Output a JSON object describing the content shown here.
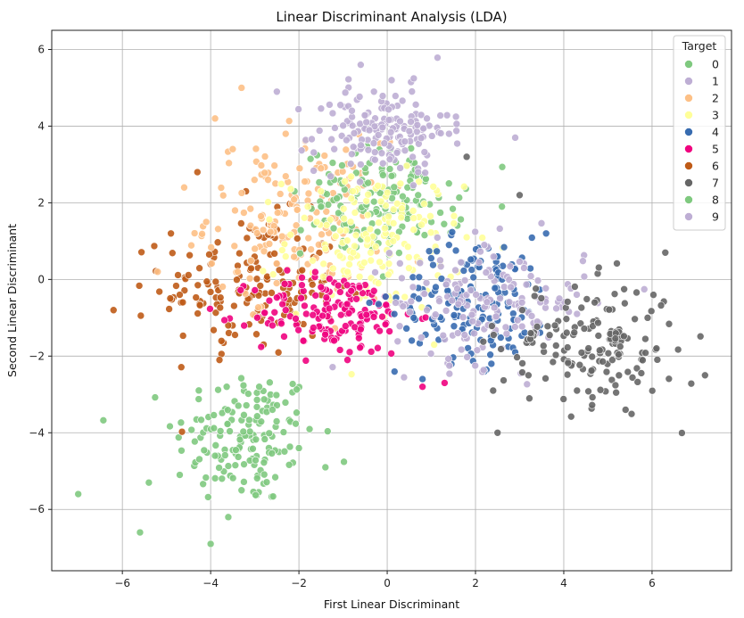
{
  "chart_data": {
    "type": "scatter",
    "title": "Linear Discriminant Analysis (LDA)",
    "xlabel": "First Linear Discriminant",
    "ylabel": "Second Linear Discriminant",
    "xlim": [
      -7.6,
      7.8
    ],
    "ylim": [
      -7.6,
      6.5
    ],
    "xticks": [
      -6,
      -4,
      -2,
      0,
      2,
      4,
      6
    ],
    "yticks": [
      -6,
      -4,
      -2,
      0,
      2,
      4,
      6
    ],
    "xtick_labels": [
      "−6",
      "−4",
      "−2",
      "0",
      "2",
      "4",
      "6"
    ],
    "ytick_labels": [
      "−6",
      "−4",
      "−2",
      "0",
      "2",
      "4",
      "6"
    ],
    "grid": true,
    "legend": {
      "title": "Target",
      "placement": "top-right"
    },
    "series": [
      {
        "name": "0",
        "color": "#7fc97f",
        "center": [
          -0.1,
          2.0
        ],
        "spread": [
          0.9,
          0.7
        ],
        "points": [
          [
            -1.2,
            2.6
          ],
          [
            -0.5,
            2.9
          ],
          [
            0.3,
            1.8
          ],
          [
            -0.8,
            1.4
          ],
          [
            0.7,
            2.2
          ],
          [
            -1.5,
            1.9
          ],
          [
            0.1,
            2.7
          ],
          [
            -0.3,
            1.1
          ],
          [
            1.0,
            1.5
          ],
          [
            -2.1,
            2.3
          ],
          [
            0.5,
            3.1
          ],
          [
            -1.0,
            1.0
          ]
        ]
      },
      {
        "name": "1",
        "color": "#beaed4",
        "center": [
          2.3,
          -0.6
        ],
        "spread": [
          1.1,
          0.8
        ],
        "points": [
          [
            1.2,
            0.5
          ],
          [
            2.8,
            -0.2
          ],
          [
            3.4,
            -1.1
          ],
          [
            1.6,
            -1.4
          ],
          [
            2.2,
            0.9
          ],
          [
            3.9,
            -0.5
          ],
          [
            0.9,
            -0.8
          ],
          [
            2.6,
            -1.8
          ],
          [
            4.3,
            -0.9
          ],
          [
            3.1,
            0.3
          ]
        ]
      },
      {
        "name": "2",
        "color": "#fdc086",
        "center": [
          -2.1,
          1.6
        ],
        "spread": [
          1.0,
          1.0
        ],
        "points": [
          [
            -3.5,
            3.4
          ],
          [
            -2.7,
            2.6
          ],
          [
            -4.1,
            1.5
          ],
          [
            -1.5,
            2.9
          ],
          [
            -3.0,
            0.8
          ],
          [
            -5.2,
            0.2
          ],
          [
            -2.3,
            3.8
          ],
          [
            -1.0,
            1.2
          ],
          [
            -3.9,
            4.2
          ],
          [
            -4.6,
            2.4
          ],
          [
            -1.8,
            0.4
          ],
          [
            -3.3,
            5.0
          ]
        ]
      },
      {
        "name": "3",
        "color": "#ffff99",
        "center": [
          -0.3,
          1.0
        ],
        "spread": [
          1.0,
          0.9
        ],
        "points": [
          [
            -1.4,
            0.8
          ],
          [
            0.6,
            1.6
          ],
          [
            -0.2,
            -0.1
          ],
          [
            1.2,
            0.4
          ],
          [
            -1.8,
            1.9
          ],
          [
            0.3,
            2.5
          ],
          [
            -0.9,
            0.2
          ],
          [
            1.8,
            1.1
          ],
          [
            -2.3,
            0.6
          ],
          [
            0.9,
            -0.3
          ]
        ]
      },
      {
        "name": "4",
        "color": "#386cb0",
        "center": [
          2.0,
          -0.5
        ],
        "spread": [
          0.9,
          0.8
        ],
        "points": [
          [
            1.1,
            -0.2
          ],
          [
            2.5,
            0.6
          ],
          [
            1.7,
            -1.3
          ],
          [
            3.1,
            -0.8
          ],
          [
            0.6,
            -1.0
          ],
          [
            2.2,
            -2.4
          ],
          [
            3.6,
            1.2
          ],
          [
            1.4,
            0.9
          ],
          [
            2.9,
            -1.9
          ],
          [
            0.8,
            -2.6
          ]
        ]
      },
      {
        "name": "5",
        "color": "#f0027f",
        "center": [
          -1.2,
          -0.9
        ],
        "spread": [
          0.9,
          0.55
        ],
        "points": [
          [
            -2.3,
            -0.8
          ],
          [
            -0.6,
            -1.3
          ],
          [
            -1.5,
            -0.2
          ],
          [
            0.1,
            -0.9
          ],
          [
            -1.9,
            -1.6
          ],
          [
            -0.9,
            -2.1
          ],
          [
            0.8,
            -2.8
          ],
          [
            -2.6,
            -1.2
          ],
          [
            -0.3,
            -0.3
          ],
          [
            1.3,
            -2.7
          ]
        ]
      },
      {
        "name": "6",
        "color": "#bf5b17",
        "center": [
          -3.1,
          -0.2
        ],
        "spread": [
          1.0,
          0.9
        ],
        "points": [
          [
            -4.0,
            0.4
          ],
          [
            -2.5,
            1.3
          ],
          [
            -3.6,
            -1.2
          ],
          [
            -4.7,
            -0.4
          ],
          [
            -2.1,
            -0.9
          ],
          [
            -3.2,
            2.3
          ],
          [
            -4.9,
            1.2
          ],
          [
            -2.8,
            -1.7
          ],
          [
            -6.2,
            -0.8
          ],
          [
            -1.9,
            0.8
          ],
          [
            -3.8,
            -2.1
          ],
          [
            -4.3,
            2.8
          ]
        ]
      },
      {
        "name": "7",
        "color": "#666666",
        "center": [
          4.6,
          -1.7
        ],
        "spread": [
          1.0,
          0.8
        ],
        "points": [
          [
            3.8,
            -1.2
          ],
          [
            5.1,
            -2.1
          ],
          [
            4.3,
            -2.9
          ],
          [
            5.9,
            -1.0
          ],
          [
            3.2,
            -2.5
          ],
          [
            4.7,
            -0.6
          ],
          [
            6.1,
            -1.8
          ],
          [
            2.4,
            -2.9
          ],
          [
            5.4,
            -3.4
          ],
          [
            7.2,
            -2.5
          ],
          [
            3.0,
            2.2
          ],
          [
            1.8,
            3.2
          ],
          [
            6.3,
            0.7
          ],
          [
            2.5,
            -4.0
          ]
        ]
      },
      {
        "name": "8",
        "color": "#7fc97f",
        "center": [
          -3.2,
          -4.1
        ],
        "spread": [
          0.8,
          0.9
        ],
        "points": [
          [
            -3.9,
            -4.6
          ],
          [
            -2.6,
            -3.4
          ],
          [
            -3.3,
            -5.5
          ],
          [
            -4.7,
            -5.1
          ],
          [
            -2.0,
            -4.4
          ],
          [
            -3.6,
            -6.2
          ],
          [
            -5.4,
            -5.3
          ],
          [
            -2.9,
            -2.8
          ],
          [
            -4.0,
            -6.9
          ],
          [
            -7.0,
            -5.6
          ],
          [
            -1.4,
            -4.9
          ],
          [
            -5.6,
            -6.6
          ]
        ]
      },
      {
        "name": "9",
        "color": "#beaed4",
        "center": [
          -0.1,
          3.9
        ],
        "spread": [
          0.75,
          0.55
        ],
        "points": [
          [
            -0.8,
            4.4
          ],
          [
            0.4,
            3.6
          ],
          [
            -0.3,
            4.9
          ],
          [
            0.9,
            4.2
          ],
          [
            -1.2,
            3.4
          ],
          [
            0.1,
            5.2
          ],
          [
            -0.6,
            3.0
          ],
          [
            1.4,
            3.8
          ],
          [
            -0.6,
            5.6
          ],
          [
            2.9,
            3.7
          ],
          [
            -2.5,
            4.9
          ],
          [
            0.7,
            2.8
          ]
        ]
      }
    ]
  }
}
